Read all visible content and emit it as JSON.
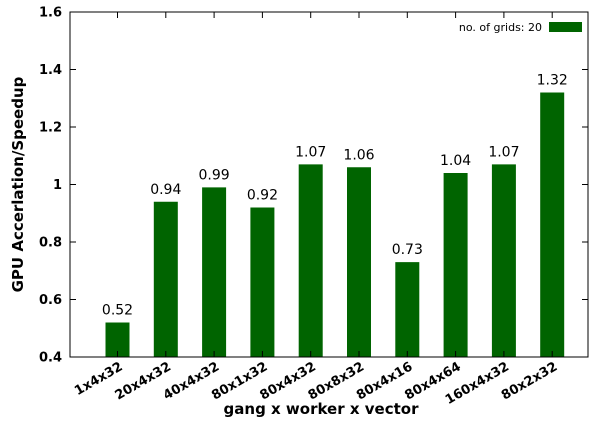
{
  "chart_data": {
    "type": "bar",
    "categories": [
      "1x4x32",
      "20x4x32",
      "40x4x32",
      "80x1x32",
      "80x4x32",
      "80x8x32",
      "80x4x16",
      "80x4x64",
      "160x4x32",
      "80x2x32"
    ],
    "series": [
      {
        "name": "no. of grids: 20",
        "values": [
          0.52,
          0.94,
          0.99,
          0.92,
          1.07,
          1.06,
          0.73,
          1.04,
          1.07,
          1.32
        ],
        "color": "#006400"
      }
    ],
    "data_labels": [
      "0.52",
      "0.94",
      "0.99",
      "0.92",
      "1.07",
      "1.06",
      "0.73",
      "1.04",
      "1.07",
      "1.32"
    ],
    "ylim": [
      0.4,
      1.6
    ],
    "yticks": [
      0.4,
      0.6,
      0.8,
      1,
      1.2,
      1.4,
      1.6
    ],
    "ytick_labels": [
      "0.4",
      "0.6",
      "0.8",
      "1",
      "1.2",
      "1.4",
      "1.6"
    ],
    "xlabel": "gang x worker x vector",
    "ylabel": "GPU Accerlation/Speedup",
    "legend_position": "top-right",
    "grid": false
  }
}
